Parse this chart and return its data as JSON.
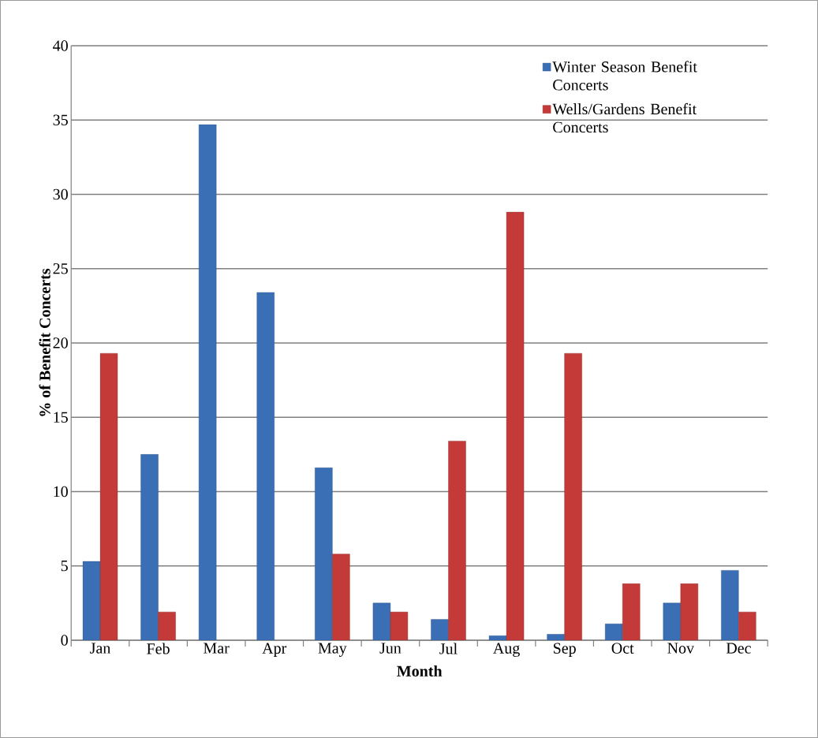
{
  "chart_data": {
    "type": "bar",
    "xlabel": "Month",
    "ylabel": "% of Benefit Concerts",
    "categories": [
      "Jan",
      "Feb",
      "Mar",
      "Apr",
      "May",
      "Jun",
      "Jul",
      "Aug",
      "Sep",
      "Oct",
      "Nov",
      "Dec"
    ],
    "series": [
      {
        "name": "Winter Season Benefit Concerts",
        "color": "#3a6fb5",
        "values": [
          5.3,
          12.5,
          34.7,
          23.4,
          11.6,
          2.5,
          1.4,
          0.3,
          0.4,
          1.1,
          2.5,
          4.7
        ]
      },
      {
        "name": "Wells/Gardens Benefit Concerts",
        "color": "#c43a38",
        "values": [
          19.3,
          1.9,
          null,
          null,
          5.8,
          1.9,
          13.4,
          28.8,
          19.3,
          3.8,
          3.8,
          1.9
        ]
      }
    ],
    "ylim": [
      0,
      40
    ],
    "yticks": [
      0,
      5,
      10,
      15,
      20,
      25,
      30,
      35,
      40
    ],
    "grid": "y",
    "legend": "top right"
  }
}
